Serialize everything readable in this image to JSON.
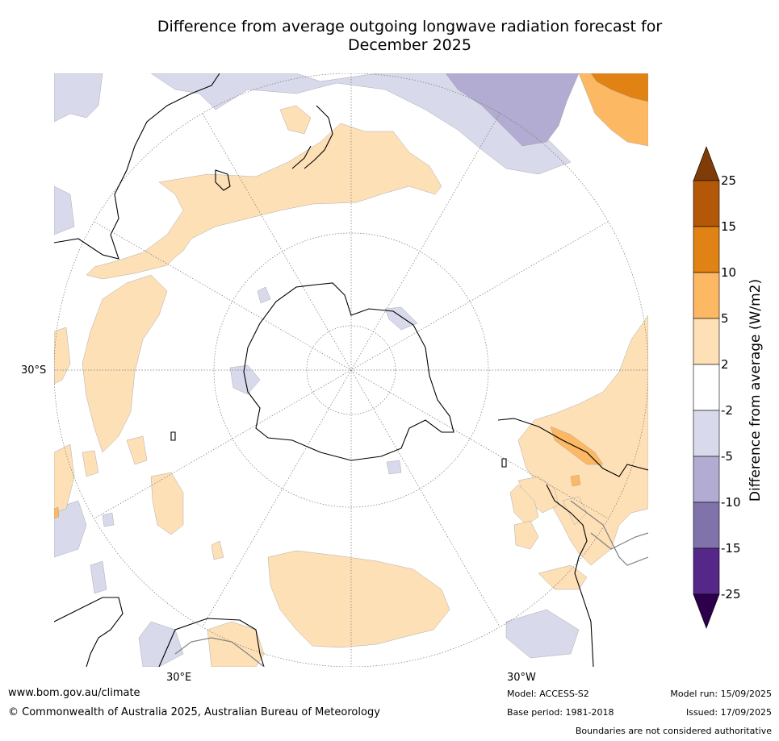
{
  "title": {
    "line1": "Difference from average outgoing longwave radiation forecast for",
    "line2": "December 2025"
  },
  "map": {
    "lat_label": "30°S",
    "lon_labels": [
      "30°E",
      "30°W"
    ]
  },
  "colorbar": {
    "label": "Difference from average (W/m2)",
    "ticks": [
      "25",
      "15",
      "10",
      "5",
      "2",
      "-2",
      "-5",
      "-10",
      "-15",
      "-25"
    ],
    "colors": {
      "over": "#7f3b08",
      "b15_25": "#b35806",
      "b10_15": "#e08214",
      "b5_10": "#fdb863",
      "b2_5": "#fee0b6",
      "neutral": "#ffffff",
      "n2_5": "#d8daeb",
      "n5_10": "#b2abd2",
      "n10_15": "#8073ac",
      "n15_25": "#542788",
      "under": "#2d004b"
    }
  },
  "footer": {
    "url": "www.bom.gov.au/climate",
    "copyright": "© Commonwealth of Australia 2025, Australian Bureau of Meteorology",
    "model": "Model: ACCESS-S2",
    "base_period": "Base period: 1981-2018",
    "model_run": "Model run: 15/09/2025",
    "issued": "Issued: 17/09/2025",
    "disclaimer": "Boundaries are not considered authoritative"
  }
}
